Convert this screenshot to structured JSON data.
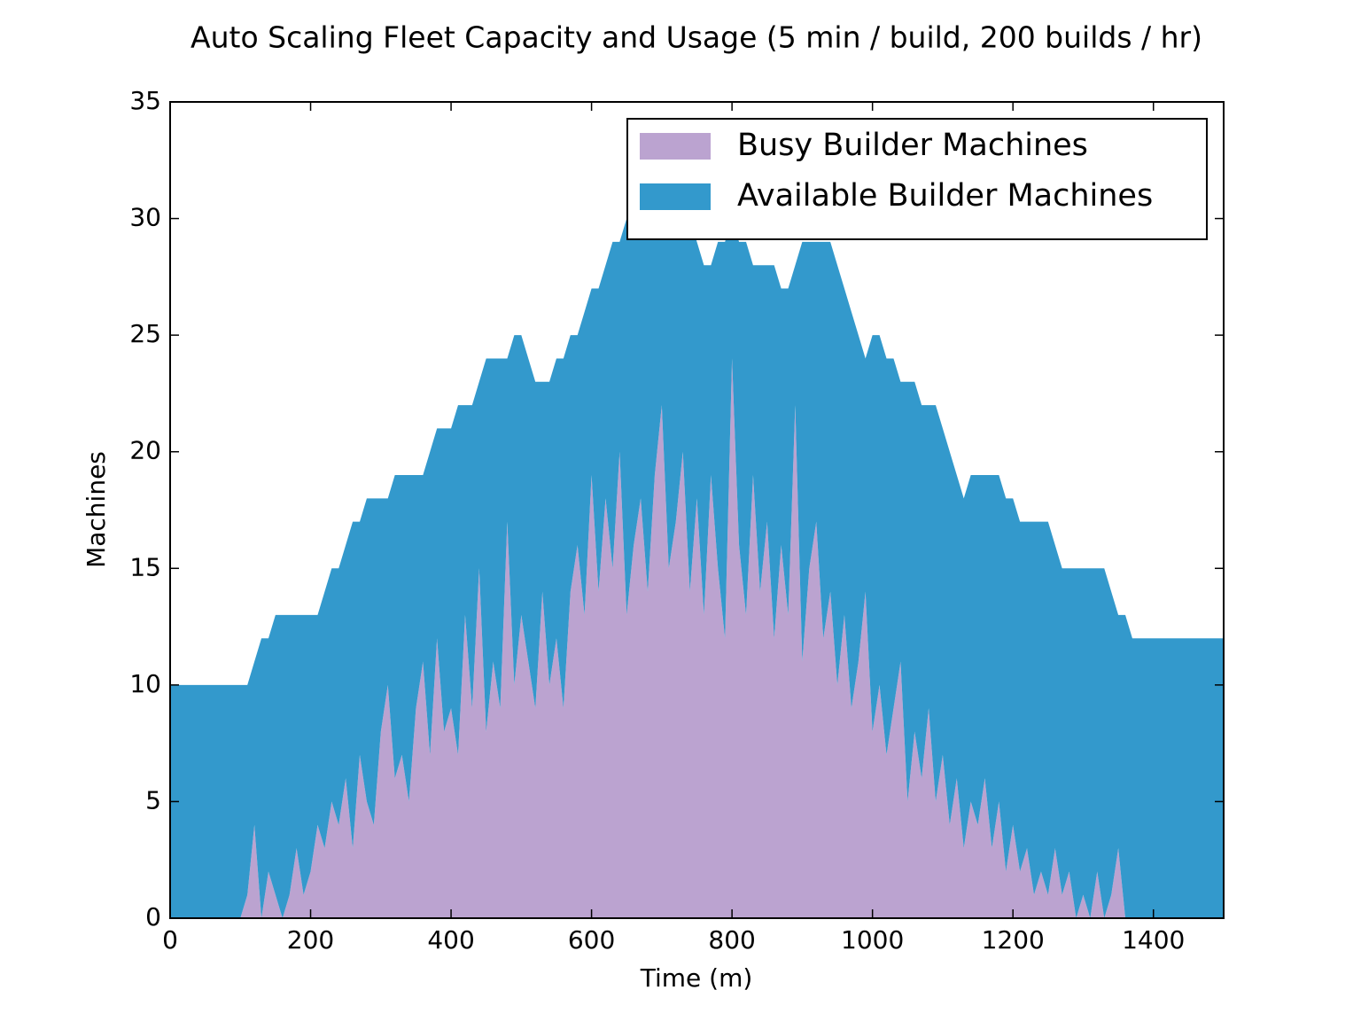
{
  "chart_data": {
    "type": "stackedarea",
    "title": "Auto Scaling Fleet Capacity and Usage (5 min / build, 200 builds / hr)",
    "x_label": "Time (m)",
    "y_label": "Machines",
    "x": [
      0,
      10,
      20,
      30,
      40,
      50,
      60,
      70,
      80,
      90,
      100,
      110,
      120,
      130,
      140,
      150,
      160,
      170,
      180,
      190,
      200,
      210,
      220,
      230,
      240,
      250,
      260,
      270,
      280,
      290,
      300,
      310,
      320,
      330,
      340,
      350,
      360,
      370,
      380,
      390,
      400,
      410,
      420,
      430,
      440,
      450,
      460,
      470,
      480,
      490,
      500,
      510,
      520,
      530,
      540,
      550,
      560,
      570,
      580,
      590,
      600,
      610,
      620,
      630,
      640,
      650,
      660,
      670,
      680,
      690,
      700,
      710,
      720,
      730,
      740,
      750,
      760,
      770,
      780,
      790,
      800,
      810,
      820,
      830,
      840,
      850,
      860,
      870,
      880,
      890,
      900,
      910,
      920,
      930,
      940,
      950,
      960,
      970,
      980,
      990,
      1000,
      1010,
      1020,
      1030,
      1040,
      1050,
      1060,
      1070,
      1080,
      1090,
      1100,
      1110,
      1120,
      1130,
      1140,
      1150,
      1160,
      1170,
      1180,
      1190,
      1200,
      1210,
      1220,
      1230,
      1240,
      1250,
      1260,
      1270,
      1280,
      1290,
      1300,
      1310,
      1320,
      1330,
      1340,
      1350,
      1360,
      1370,
      1380,
      1390,
      1400,
      1410,
      1420,
      1430,
      1440,
      1450,
      1460,
      1470,
      1480,
      1490,
      1500
    ],
    "series": [
      {
        "name": "Busy Builder Machines",
        "color": "#bba3d0",
        "values": [
          0,
          0,
          0,
          0,
          0,
          0,
          0,
          0,
          0,
          0,
          0,
          1,
          4,
          0,
          2,
          1,
          0,
          1,
          3,
          1,
          2,
          4,
          3,
          5,
          4,
          6,
          3,
          7,
          5,
          4,
          8,
          10,
          6,
          7,
          5,
          9,
          11,
          7,
          12,
          8,
          9,
          7,
          13,
          9,
          15,
          8,
          11,
          9,
          17,
          10,
          13,
          11,
          9,
          14,
          10,
          12,
          9,
          14,
          16,
          13,
          19,
          14,
          18,
          15,
          20,
          13,
          16,
          18,
          14,
          19,
          22,
          15,
          17,
          20,
          14,
          18,
          13,
          19,
          15,
          12,
          24,
          16,
          13,
          19,
          14,
          17,
          12,
          16,
          13,
          22,
          11,
          15,
          17,
          12,
          14,
          10,
          13,
          9,
          11,
          14,
          8,
          10,
          7,
          9,
          11,
          5,
          8,
          6,
          9,
          5,
          7,
          4,
          6,
          3,
          5,
          4,
          6,
          3,
          5,
          2,
          4,
          2,
          3,
          1,
          2,
          1,
          3,
          1,
          2,
          0,
          1,
          0,
          2,
          0,
          1,
          3,
          0,
          0,
          0,
          0,
          0,
          0,
          0,
          0,
          0,
          0,
          0,
          0,
          0,
          0,
          0
        ]
      },
      {
        "name": "Available Builder Machines",
        "color": "#3399cc",
        "values": [
          10,
          10,
          10,
          10,
          10,
          10,
          10,
          10,
          10,
          10,
          10,
          9,
          7,
          12,
          10,
          12,
          13,
          12,
          10,
          12,
          11,
          9,
          11,
          10,
          11,
          10,
          14,
          10,
          13,
          14,
          10,
          8,
          13,
          12,
          14,
          10,
          8,
          13,
          9,
          13,
          12,
          15,
          9,
          13,
          8,
          16,
          13,
          15,
          7,
          15,
          12,
          13,
          14,
          9,
          13,
          12,
          15,
          11,
          9,
          13,
          8,
          13,
          10,
          14,
          9,
          17,
          14,
          12,
          16,
          11,
          8,
          15,
          13,
          10,
          16,
          11,
          15,
          9,
          14,
          17,
          6,
          13,
          16,
          9,
          14,
          11,
          16,
          11,
          14,
          6,
          18,
          14,
          12,
          17,
          15,
          18,
          14,
          17,
          14,
          10,
          17,
          15,
          17,
          15,
          12,
          18,
          15,
          16,
          13,
          17,
          14,
          16,
          13,
          15,
          14,
          15,
          13,
          16,
          14,
          16,
          14,
          15,
          14,
          16,
          15,
          16,
          13,
          14,
          13,
          15,
          14,
          15,
          13,
          15,
          13,
          10,
          13,
          12,
          12,
          12,
          12,
          12,
          12,
          12,
          12,
          12,
          12,
          12,
          12,
          12,
          12
        ]
      }
    ],
    "xlim": [
      0,
      1500
    ],
    "xticks": [
      0,
      200,
      400,
      600,
      800,
      1000,
      1200,
      1400
    ],
    "ylim": [
      0,
      35
    ],
    "yticks": [
      0,
      5,
      10,
      15,
      20,
      25,
      30,
      35
    ],
    "legend": "upper right"
  }
}
